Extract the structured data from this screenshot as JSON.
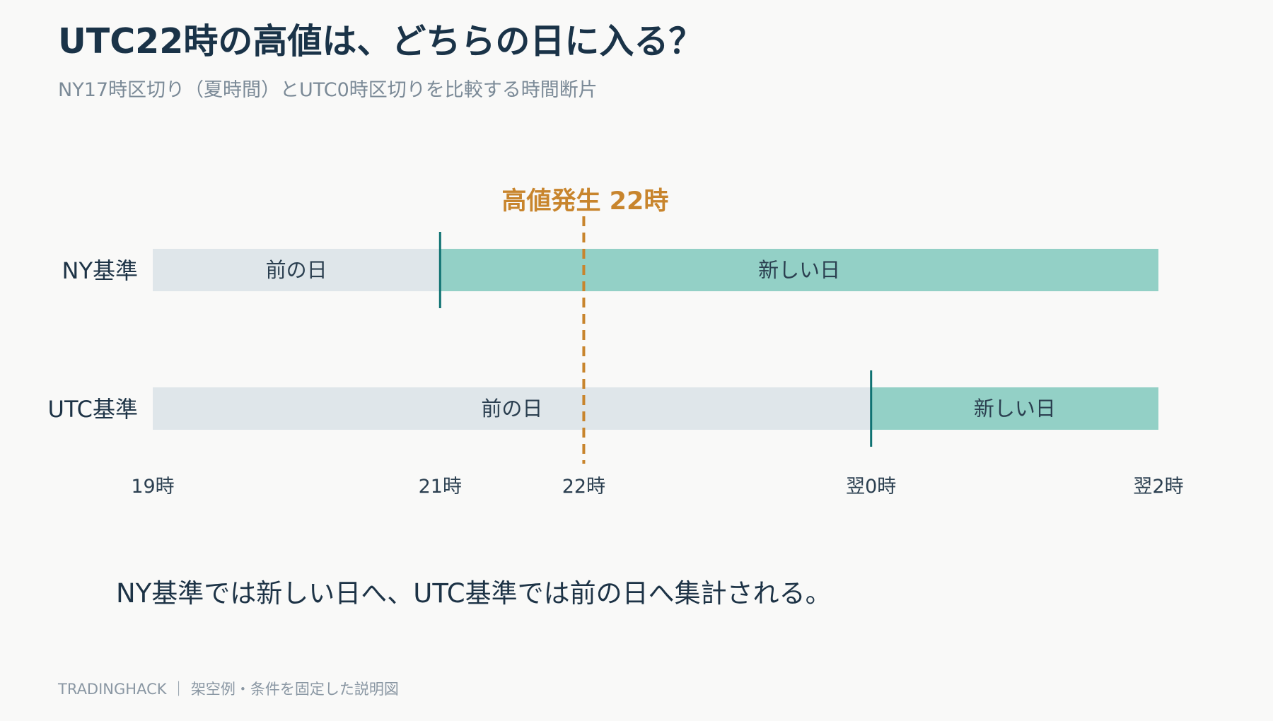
{
  "header": {
    "title": "UTC22時の高値は、どちらの日に入る？",
    "subtitle": "NY17時区切り（夏時間）とUTC0時区切りを比較する時間断片"
  },
  "event": {
    "label": "高値発生 22時",
    "hour": 22
  },
  "rows": [
    {
      "label": "NY基準",
      "boundary_hour": 21,
      "segments": [
        {
          "label": "前の日",
          "start": 19,
          "end": 21,
          "kind": "prev"
        },
        {
          "label": "新しい日",
          "start": 21,
          "end": 26,
          "kind": "new"
        }
      ]
    },
    {
      "label": "UTC基準",
      "boundary_hour": 24,
      "segments": [
        {
          "label": "前の日",
          "start": 19,
          "end": 24,
          "kind": "prev"
        },
        {
          "label": "新しい日",
          "start": 24,
          "end": 26,
          "kind": "new"
        }
      ]
    }
  ],
  "axis": {
    "range": [
      19,
      26
    ],
    "ticks": [
      {
        "value": 19,
        "label": "19時"
      },
      {
        "value": 21,
        "label": "21時"
      },
      {
        "value": 22,
        "label": "22時"
      },
      {
        "value": 24,
        "label": "翌0時"
      },
      {
        "value": 26,
        "label": "翌2時"
      }
    ]
  },
  "conclusion": "NY基準では新しい日へ、UTC基準では前の日へ集計される。",
  "footer": "TRADINGHACK ｜ 架空例・条件を固定した説明図",
  "colors": {
    "prev_day": "#dfe6ea",
    "new_day": "#93d0c6",
    "boundary": "#0f7272",
    "event": "#c8852d",
    "text": "#1d3346"
  }
}
